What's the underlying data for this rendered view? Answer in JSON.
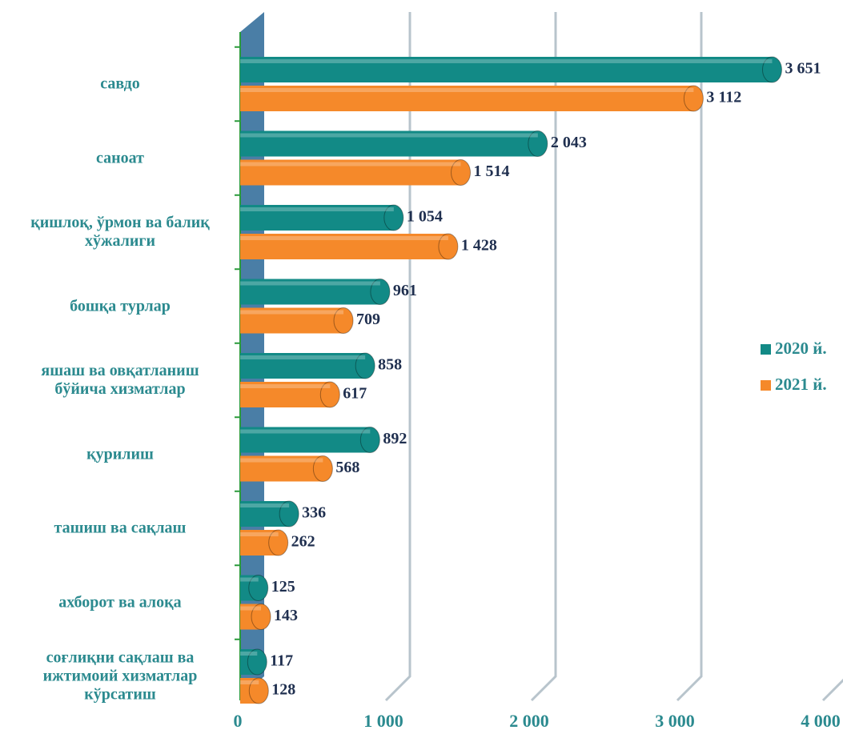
{
  "chart_data": {
    "type": "bar",
    "orientation": "horizontal",
    "categories": [
      "савдо",
      "саноат",
      "қишлоқ, ўрмон ва балиқ хўжалиги",
      "бошқа турлар",
      "яшаш ва овқатланиш бўйича хизматлар",
      "қурилиш",
      "ташиш ва сақлаш",
      "ахборот ва алоқа",
      "соғлиқни сақлаш ва ижтимоий хизматлар кўрсатиш"
    ],
    "series": [
      {
        "name": "2020 й.",
        "color": "#128a86",
        "values": [
          3651,
          2043,
          1054,
          961,
          858,
          892,
          336,
          125,
          117
        ],
        "value_labels": [
          "3 651",
          "2 043",
          "1 054",
          "961",
          "858",
          "892",
          "336",
          "125",
          "117"
        ]
      },
      {
        "name": "2021 й.",
        "color": "#f5892a",
        "values": [
          3112,
          1514,
          1428,
          709,
          617,
          568,
          262,
          143,
          128
        ],
        "value_labels": [
          "3 112",
          "1 514",
          "1 428",
          "709",
          "617",
          "568",
          "262",
          "143",
          "128"
        ]
      }
    ],
    "xlim": [
      0,
      4000
    ],
    "xticks": [
      0,
      {
        "value": 1000,
        "label": "1 000"
      },
      {
        "value": 2000,
        "label": "2 000"
      },
      {
        "value": 3000,
        "label": "3 000"
      },
      {
        "value": 4000,
        "label": "4 000"
      }
    ],
    "grid": true,
    "legend": "right"
  }
}
